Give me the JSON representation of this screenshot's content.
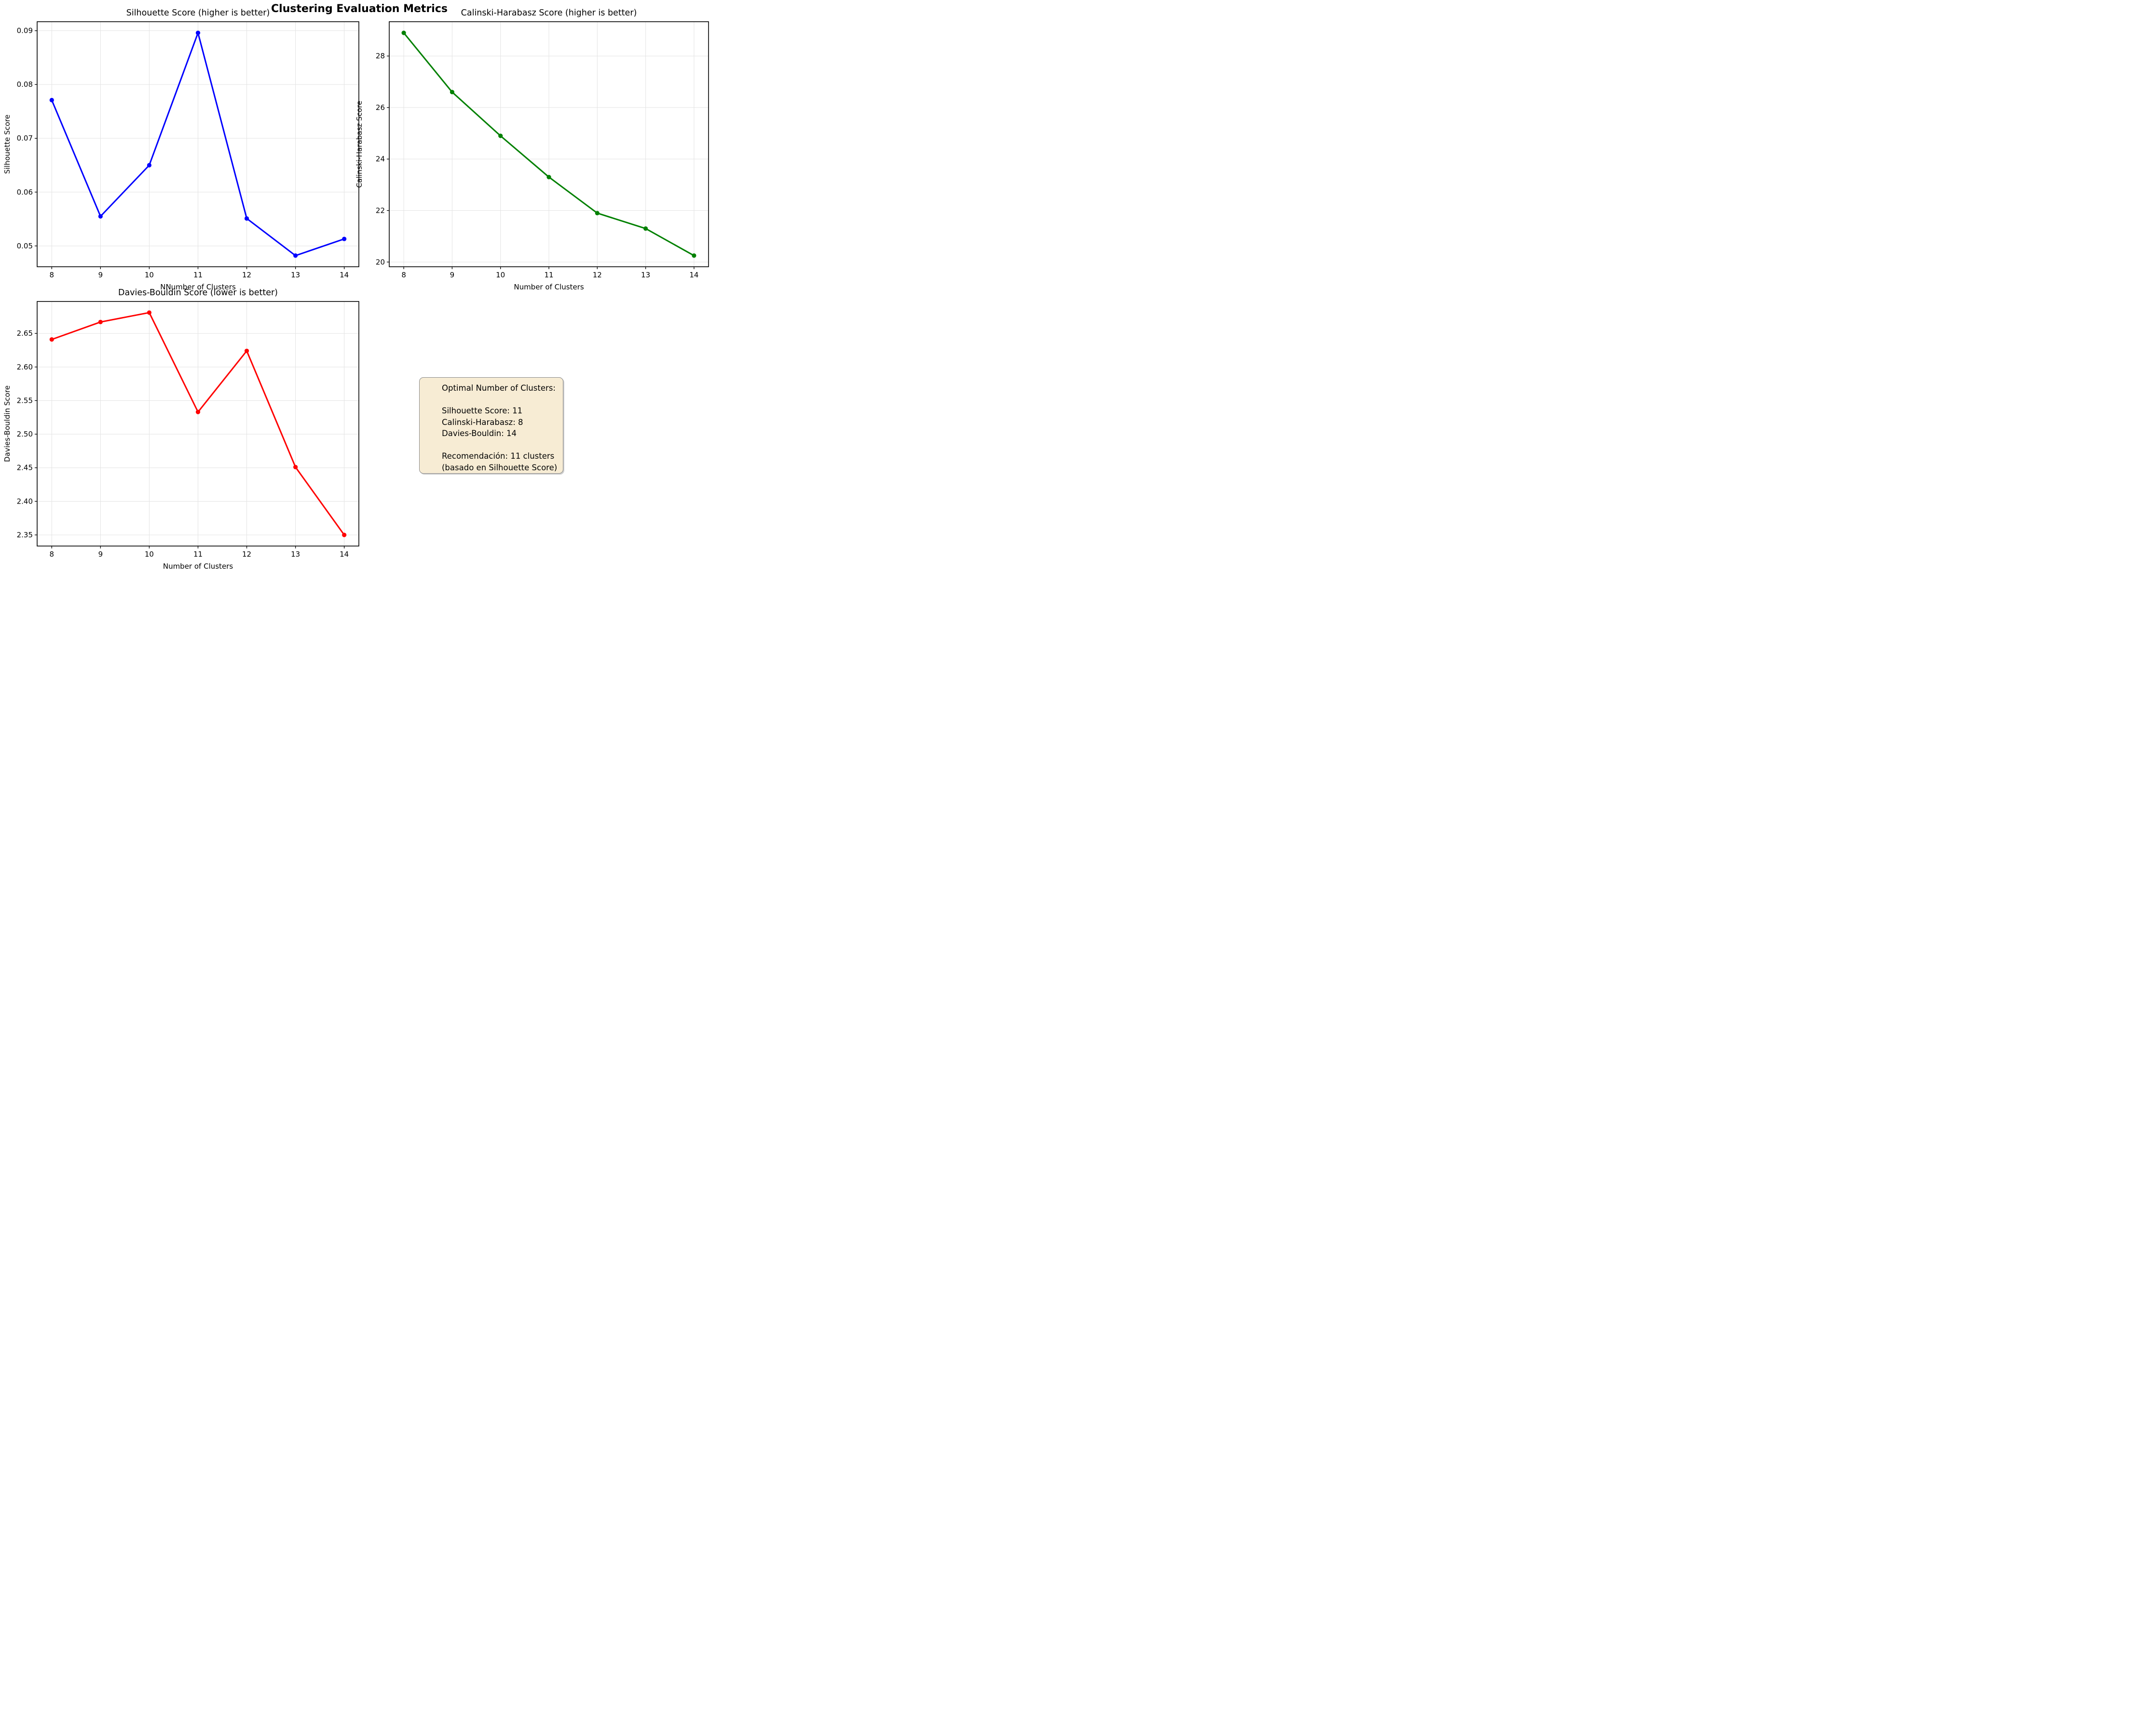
{
  "figure": {
    "title": "Clustering Evaluation Metrics",
    "background": "#ffffff",
    "grid_color": "#e3e3e3",
    "spine_color": "#000000"
  },
  "chart_data": [
    {
      "id": "silhouette",
      "type": "line",
      "title": "Silhouette Score (higher is better)",
      "xlabel": "NNumber of Clusters",
      "ylabel": "Silhouette Score",
      "color": "#0000ff",
      "x": [
        8,
        9,
        10,
        11,
        12,
        13,
        14
      ],
      "y": [
        0.0771,
        0.0555,
        0.065,
        0.0896,
        0.0551,
        0.0482,
        0.0513
      ],
      "xticks": [
        8,
        9,
        10,
        11,
        12,
        13,
        14
      ],
      "yticks": [
        0.05,
        0.06,
        0.07,
        0.08,
        0.09
      ],
      "ytick_decimals": 2,
      "grid": true,
      "legend": "none"
    },
    {
      "id": "calinski",
      "type": "line",
      "title": "Calinski-Harabasz Score (higher is better)",
      "xlabel": "Number of Clusters",
      "ylabel": "Calinski-Harabasz Score",
      "color": "#008000",
      "x": [
        8,
        9,
        10,
        11,
        12,
        13,
        14
      ],
      "y": [
        28.9,
        26.6,
        24.9,
        23.3,
        21.9,
        21.3,
        20.25
      ],
      "xticks": [
        8,
        9,
        10,
        11,
        12,
        13,
        14
      ],
      "yticks": [
        20,
        22,
        24,
        26,
        28
      ],
      "ytick_decimals": 0,
      "grid": true,
      "legend": "none"
    },
    {
      "id": "davies",
      "type": "line",
      "title": "Davies-Bouldin Score (lower is better)",
      "xlabel": "Number of Clusters",
      "ylabel": "Davies-Bouldin Score",
      "color": "#ff0000",
      "x": [
        8,
        9,
        10,
        11,
        12,
        13,
        14
      ],
      "y": [
        2.641,
        2.667,
        2.681,
        2.533,
        2.624,
        2.451,
        2.35
      ],
      "xticks": [
        8,
        9,
        10,
        11,
        12,
        13,
        14
      ],
      "yticks": [
        2.35,
        2.4,
        2.45,
        2.5,
        2.55,
        2.6,
        2.65
      ],
      "ytick_decimals": 2,
      "grid": true,
      "legend": "none"
    }
  ],
  "infobox": {
    "background": "#f7ecd4",
    "border_color": "#8a8a8a",
    "lines": [
      "Optimal Number of Clusters:",
      "",
      "Silhouette Score: 11",
      "Calinski-Harabasz: 8",
      "Davies-Bouldin: 14",
      "",
      "Recomendación: 11 clusters",
      "(basado en Silhouette Score)"
    ]
  }
}
